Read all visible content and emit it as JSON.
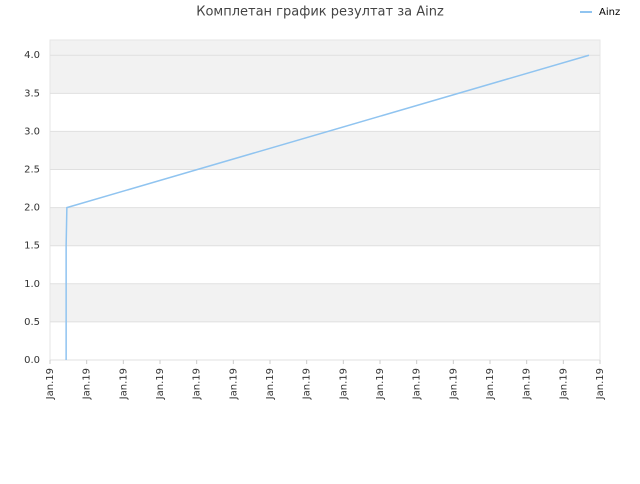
{
  "chart_data": {
    "type": "line",
    "title": "Комплетан график резултат за Ainz",
    "x": [
      0.44,
      0.44,
      0.46,
      14.7
    ],
    "series": [
      {
        "name": "Ainz",
        "color": "#90c4f0",
        "values": [
          0,
          1.5,
          2.0,
          4.0
        ]
      }
    ],
    "xlim": [
      0,
      15
    ],
    "xticks": [
      {
        "value": 0,
        "label": "Jan.19"
      },
      {
        "value": 1,
        "label": "Jan.19"
      },
      {
        "value": 2,
        "label": "Jan.19"
      },
      {
        "value": 3,
        "label": "Jan.19"
      },
      {
        "value": 4,
        "label": "Jan.19"
      },
      {
        "value": 5,
        "label": "Jan.19"
      },
      {
        "value": 6,
        "label": "Jan.19"
      },
      {
        "value": 7,
        "label": "Jan.19"
      },
      {
        "value": 8,
        "label": "Jan.19"
      },
      {
        "value": 9,
        "label": "Jan.19"
      },
      {
        "value": 10,
        "label": "Jan.19"
      },
      {
        "value": 11,
        "label": "Jan.19"
      },
      {
        "value": 12,
        "label": "Jan.19"
      },
      {
        "value": 13,
        "label": "Jan.19"
      },
      {
        "value": 14,
        "label": "Jan.19"
      },
      {
        "value": 15,
        "label": "Jan.19"
      }
    ],
    "ylim": [
      0,
      4.2
    ],
    "yticks": [
      {
        "value": 0,
        "label": "0.0"
      },
      {
        "value": 0.5,
        "label": "0.5"
      },
      {
        "value": 1,
        "label": "1.0"
      },
      {
        "value": 1.5,
        "label": "1.5"
      },
      {
        "value": 2,
        "label": "2.0"
      },
      {
        "value": 2.5,
        "label": "2.5"
      },
      {
        "value": 3,
        "label": "3.0"
      },
      {
        "value": 3.5,
        "label": "3.5"
      },
      {
        "value": 4,
        "label": "4.0"
      }
    ],
    "grid": true,
    "legend": "top-right"
  }
}
